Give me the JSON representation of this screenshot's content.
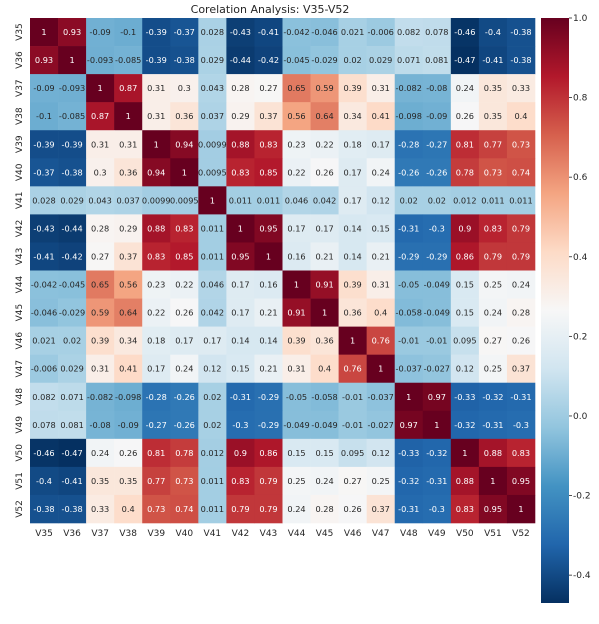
{
  "chart_data": {
    "type": "heatmap",
    "title": "Corelation Analysis: V35-V52",
    "xlabel": "",
    "ylabel": "",
    "labels": [
      "V35",
      "V36",
      "V37",
      "V38",
      "V39",
      "V40",
      "V41",
      "V42",
      "V43",
      "V44",
      "V45",
      "V46",
      "V47",
      "V48",
      "V49",
      "V50",
      "V51",
      "V52"
    ],
    "cells": [
      [
        "1",
        "0.93",
        "-0.09",
        "-0.1",
        "-0.39",
        "-0.37",
        "0.028",
        "-0.43",
        "-0.41",
        "-0.042",
        "-0.046",
        "0.021",
        "-0.006",
        "0.082",
        "0.078",
        "-0.46",
        "-0.4",
        "-0.38"
      ],
      [
        "0.93",
        "1",
        "-0.093",
        "-0.085",
        "-0.39",
        "-0.38",
        "0.029",
        "-0.44",
        "-0.42",
        "-0.045",
        "-0.029",
        "0.02",
        "0.029",
        "0.071",
        "0.081",
        "-0.47",
        "-0.41",
        "-0.38"
      ],
      [
        "-0.09",
        "-0.093",
        "1",
        "0.87",
        "0.31",
        "0.3",
        "0.043",
        "0.28",
        "0.27",
        "0.65",
        "0.59",
        "0.39",
        "0.31",
        "-0.082",
        "-0.08",
        "0.24",
        "0.35",
        "0.33"
      ],
      [
        "-0.1",
        "-0.085",
        "0.87",
        "1",
        "0.31",
        "0.36",
        "0.037",
        "0.29",
        "0.37",
        "0.56",
        "0.64",
        "0.34",
        "0.41",
        "-0.098",
        "-0.09",
        "0.26",
        "0.35",
        "0.4"
      ],
      [
        "-0.39",
        "-0.39",
        "0.31",
        "0.31",
        "1",
        "0.94",
        "0.0099",
        "0.88",
        "0.83",
        "0.23",
        "0.22",
        "0.18",
        "0.17",
        "-0.28",
        "-0.27",
        "0.81",
        "0.77",
        "0.73"
      ],
      [
        "-0.37",
        "-0.38",
        "0.3",
        "0.36",
        "0.94",
        "1",
        "0.0095",
        "0.83",
        "0.85",
        "0.22",
        "0.26",
        "0.17",
        "0.24",
        "-0.26",
        "-0.26",
        "0.78",
        "0.73",
        "0.74"
      ],
      [
        "0.028",
        "0.029",
        "0.043",
        "0.037",
        "0.0099",
        "0.0095",
        "1",
        "0.011",
        "0.011",
        "0.046",
        "0.042",
        "0.17",
        "0.12",
        "0.02",
        "0.02",
        "0.012",
        "0.011",
        "0.011"
      ],
      [
        "-0.43",
        "-0.44",
        "0.28",
        "0.29",
        "0.88",
        "0.83",
        "0.011",
        "1",
        "0.95",
        "0.17",
        "0.17",
        "0.14",
        "0.15",
        "-0.31",
        "-0.3",
        "0.9",
        "0.83",
        "0.79"
      ],
      [
        "-0.41",
        "-0.42",
        "0.27",
        "0.37",
        "0.83",
        "0.85",
        "0.011",
        "0.95",
        "1",
        "0.16",
        "0.21",
        "0.14",
        "0.21",
        "-0.29",
        "-0.29",
        "0.86",
        "0.79",
        "0.79"
      ],
      [
        "-0.042",
        "-0.045",
        "0.65",
        "0.56",
        "0.23",
        "0.22",
        "0.046",
        "0.17",
        "0.16",
        "1",
        "0.91",
        "0.39",
        "0.31",
        "-0.05",
        "-0.049",
        "0.15",
        "0.25",
        "0.24"
      ],
      [
        "-0.046",
        "-0.029",
        "0.59",
        "0.64",
        "0.22",
        "0.26",
        "0.042",
        "0.17",
        "0.21",
        "0.91",
        "1",
        "0.36",
        "0.4",
        "-0.058",
        "-0.049",
        "0.15",
        "0.24",
        "0.28"
      ],
      [
        "0.021",
        "0.02",
        "0.39",
        "0.34",
        "0.18",
        "0.17",
        "0.17",
        "0.14",
        "0.14",
        "0.39",
        "0.36",
        "1",
        "0.76",
        "-0.01",
        "-0.01",
        "0.095",
        "0.27",
        "0.26"
      ],
      [
        "-0.006",
        "0.029",
        "0.31",
        "0.41",
        "0.17",
        "0.24",
        "0.12",
        "0.15",
        "0.21",
        "0.31",
        "0.4",
        "0.76",
        "1",
        "-0.037",
        "-0.027",
        "0.12",
        "0.25",
        "0.37"
      ],
      [
        "0.082",
        "0.071",
        "-0.082",
        "-0.098",
        "-0.28",
        "-0.26",
        "0.02",
        "-0.31",
        "-0.29",
        "-0.05",
        "-0.058",
        "-0.01",
        "-0.037",
        "1",
        "0.97",
        "-0.33",
        "-0.32",
        "-0.31"
      ],
      [
        "0.078",
        "0.081",
        "-0.08",
        "-0.09",
        "-0.27",
        "-0.26",
        "0.02",
        "-0.3",
        "-0.29",
        "-0.049",
        "-0.049",
        "-0.01",
        "-0.027",
        "0.97",
        "1",
        "-0.32",
        "-0.31",
        "-0.3"
      ],
      [
        "-0.46",
        "-0.47",
        "0.24",
        "0.26",
        "0.81",
        "0.78",
        "0.012",
        "0.9",
        "0.86",
        "0.15",
        "0.15",
        "0.095",
        "0.12",
        "-0.33",
        "-0.32",
        "1",
        "0.88",
        "0.83"
      ],
      [
        "-0.4",
        "-0.41",
        "0.35",
        "0.35",
        "0.77",
        "0.73",
        "0.011",
        "0.83",
        "0.79",
        "0.25",
        "0.24",
        "0.27",
        "0.25",
        "-0.32",
        "-0.31",
        "0.88",
        "1",
        "0.95"
      ],
      [
        "-0.38",
        "-0.38",
        "0.33",
        "0.4",
        "0.73",
        "0.74",
        "0.011",
        "0.79",
        "0.79",
        "0.24",
        "0.28",
        "0.26",
        "0.37",
        "-0.31",
        "-0.3",
        "0.83",
        "0.95",
        "1"
      ]
    ],
    "colorbar": {
      "colormap": "RdBu_r",
      "range": [
        -0.47,
        1.0
      ],
      "ticks": [
        "1.0",
        "0.8",
        "0.6",
        "0.4",
        "0.2",
        "0.0",
        "-0.2",
        "-0.4"
      ]
    },
    "grid": false,
    "legend": "colorbar-right"
  }
}
